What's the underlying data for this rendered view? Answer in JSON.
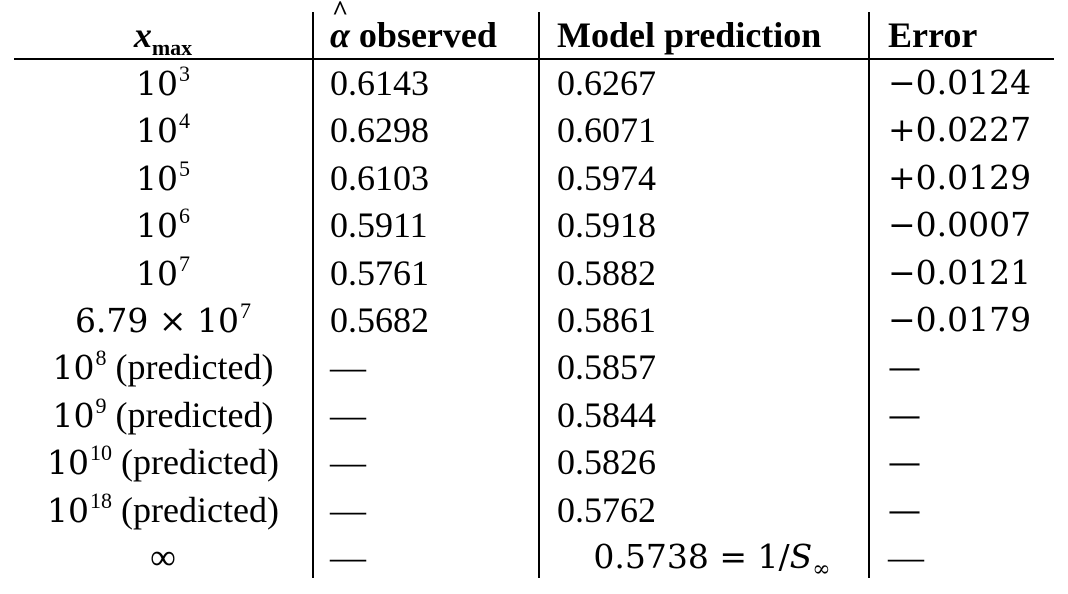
{
  "table": {
    "headers": {
      "col0_var": "x",
      "col0_sub": "max",
      "col1_symbol": "α",
      "col1_hat": "^",
      "col1_rest": " observed",
      "col2": "Model prediction",
      "col3": "Error"
    },
    "rows": [
      {
        "base": "10",
        "exp": "3",
        "suffix": "",
        "observed": "0.6143",
        "model": "0.6267",
        "error": "−0.0124"
      },
      {
        "base": "10",
        "exp": "4",
        "suffix": "",
        "observed": "0.6298",
        "model": "0.6071",
        "error": "+0.0227"
      },
      {
        "base": "10",
        "exp": "5",
        "suffix": "",
        "observed": "0.6103",
        "model": "0.5974",
        "error": "+0.0129"
      },
      {
        "base": "10",
        "exp": "6",
        "suffix": "",
        "observed": "0.5911",
        "model": "0.5918",
        "error": "−0.0007"
      },
      {
        "base": "10",
        "exp": "7",
        "suffix": "",
        "observed": "0.5761",
        "model": "0.5882",
        "error": "−0.0121"
      },
      {
        "base": "6.79 × 10",
        "exp": "7",
        "suffix": "",
        "observed": "0.5682",
        "model": "0.5861",
        "error": "−0.0179"
      },
      {
        "base": "10",
        "exp": "8",
        "suffix": " (predicted)",
        "observed": "—",
        "model": "0.5857",
        "error": "—"
      },
      {
        "base": "10",
        "exp": "9",
        "suffix": " (predicted)",
        "observed": "—",
        "model": "0.5844",
        "error": "—"
      },
      {
        "base": "10",
        "exp": "10",
        "suffix": " (predicted)",
        "observed": "—",
        "model": "0.5826",
        "error": "—"
      },
      {
        "base": "10",
        "exp": "18",
        "suffix": " (predicted)",
        "observed": "—",
        "model": "0.5762",
        "error": "—"
      }
    ],
    "last_row": {
      "xmax": "∞",
      "observed": "—",
      "model_prefix": "0.5738 = 1/",
      "model_var": "S",
      "model_sub": "∞",
      "error": "—"
    }
  }
}
